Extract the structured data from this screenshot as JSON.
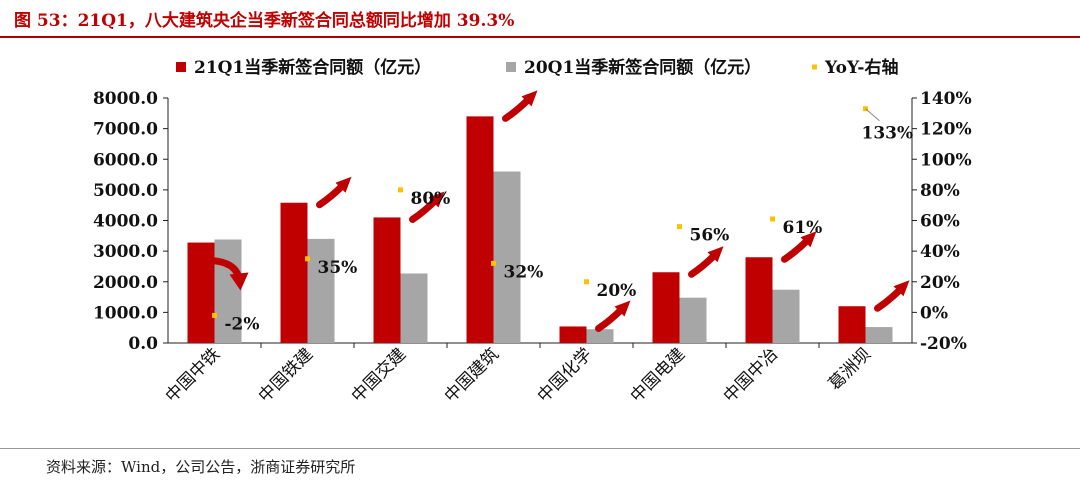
{
  "header": {
    "title": "图 53：21Q1，八大建筑央企当季新签合同总额同比增加 39.3%"
  },
  "footer": {
    "source": "资料来源：Wind，公司公告，浙商证券研究所"
  },
  "colors": {
    "s1": "#c00000",
    "s2": "#a6a6a6",
    "yoy": "#ffc000",
    "arrow": "#c00000"
  },
  "chart_data": {
    "type": "bar",
    "categories": [
      "中国中铁",
      "中国铁建",
      "中国交建",
      "中国建筑",
      "中国化学",
      "中国电建",
      "中国中冶",
      "葛洲坝"
    ],
    "series": [
      {
        "name": "21Q1当季新签合同额（亿元）",
        "values": [
          3280,
          4580,
          4100,
          7400,
          540,
          2310,
          2800,
          1200
        ]
      },
      {
        "name": "20Q1当季新签合同额（亿元）",
        "values": [
          3380,
          3400,
          2270,
          5600,
          450,
          1480,
          1740,
          520
        ]
      },
      {
        "name": "YoY-右轴",
        "values": [
          -2,
          35,
          80,
          32,
          20,
          56,
          61,
          133
        ]
      }
    ],
    "yoy_labels": [
      "-2%",
      "35%",
      "80%",
      "32%",
      "20%",
      "56%",
      "61%",
      "133%"
    ],
    "left_axis": {
      "min": 0,
      "max": 8000,
      "ticks": [
        "0.0",
        "1000.0",
        "2000.0",
        "3000.0",
        "4000.0",
        "5000.0",
        "6000.0",
        "7000.0",
        "8000.0"
      ]
    },
    "right_axis": {
      "min": -20,
      "max": 140,
      "ticks": [
        "-20%",
        "0%",
        "20%",
        "40%",
        "60%",
        "80%",
        "100%",
        "120%",
        "140%"
      ]
    },
    "legend_position": "top",
    "grid": false
  }
}
